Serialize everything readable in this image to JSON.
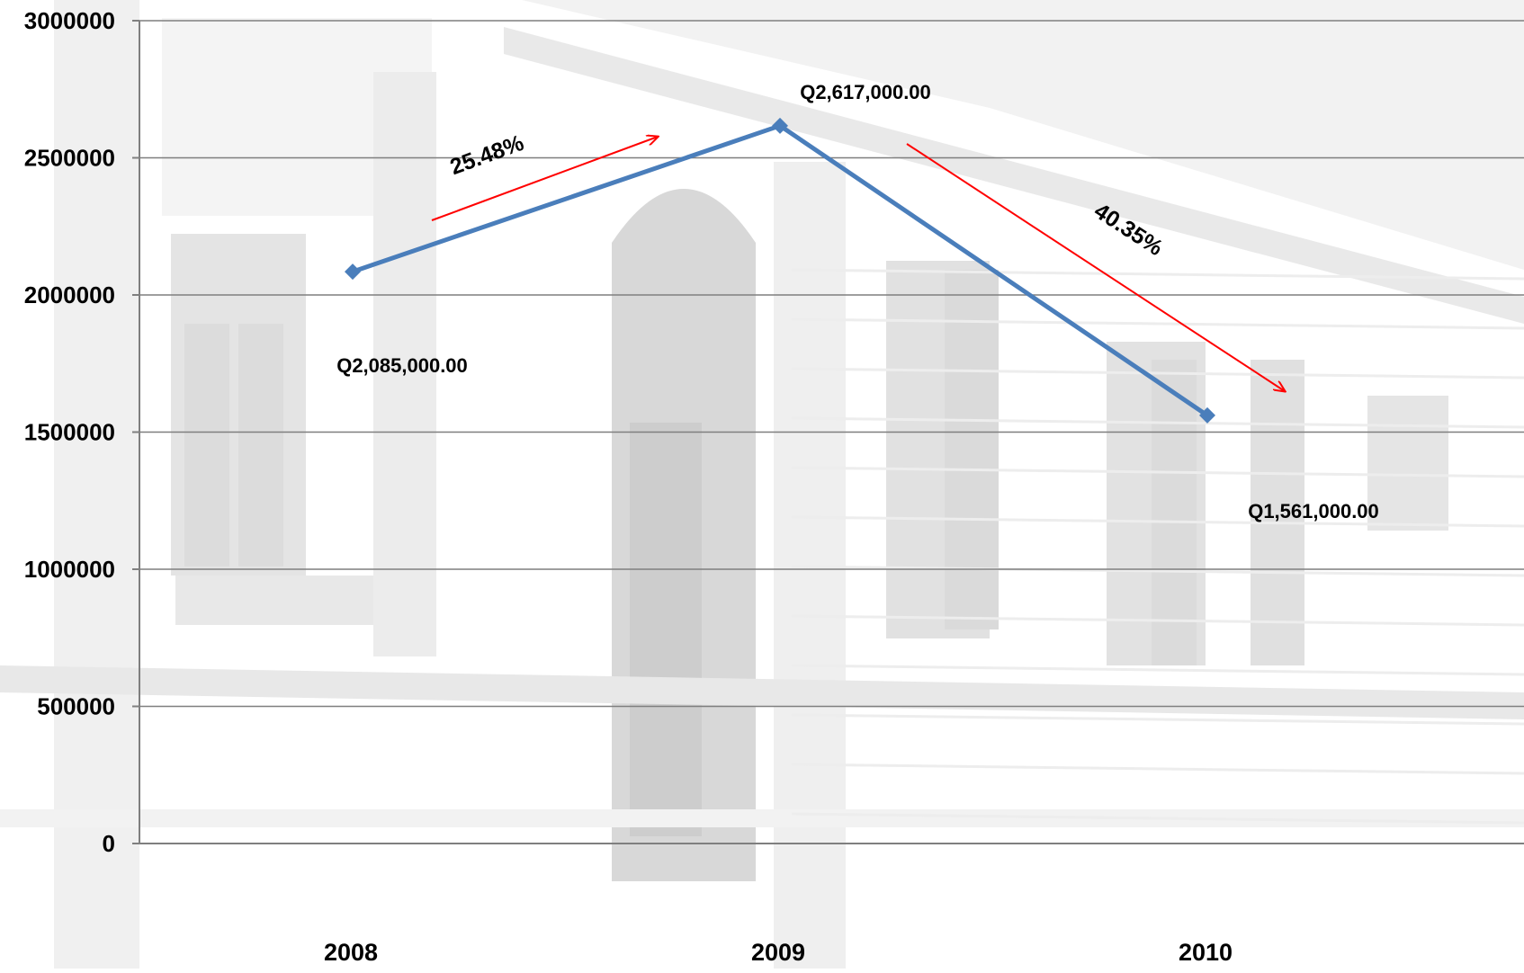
{
  "chart_data": {
    "type": "line",
    "title": "",
    "xlabel": "",
    "ylabel": "",
    "categories": [
      "2008",
      "2009",
      "2010"
    ],
    "series": [
      {
        "values": [
          2085000,
          2617000,
          1561000
        ]
      }
    ],
    "data_labels": [
      "Q2,085,000.00",
      "Q2,617,000.00",
      "Q1,561,000.00"
    ],
    "y_ticks": [
      0,
      500000,
      1000000,
      1500000,
      2000000,
      2500000,
      3000000
    ],
    "y_tick_labels": [
      "0",
      "500000",
      "1000000",
      "1500000",
      "2000000",
      "2500000",
      "3000000"
    ],
    "ylim": [
      0,
      3000000
    ],
    "grid": true,
    "legend": "none",
    "annotations": [
      {
        "text": "25.48%",
        "from": "2008",
        "to": "2009",
        "direction": "up"
      },
      {
        "text": "40.35%",
        "from": "2009",
        "to": "2010",
        "direction": "down"
      }
    ],
    "colors": {
      "series": "#4a7ebb",
      "arrows": "#ff0000",
      "grid": "#7f7f7f",
      "background_image_tone": "#d6d6d6"
    },
    "background": "faded-grayscale-photo-of-classical-building-facade"
  }
}
